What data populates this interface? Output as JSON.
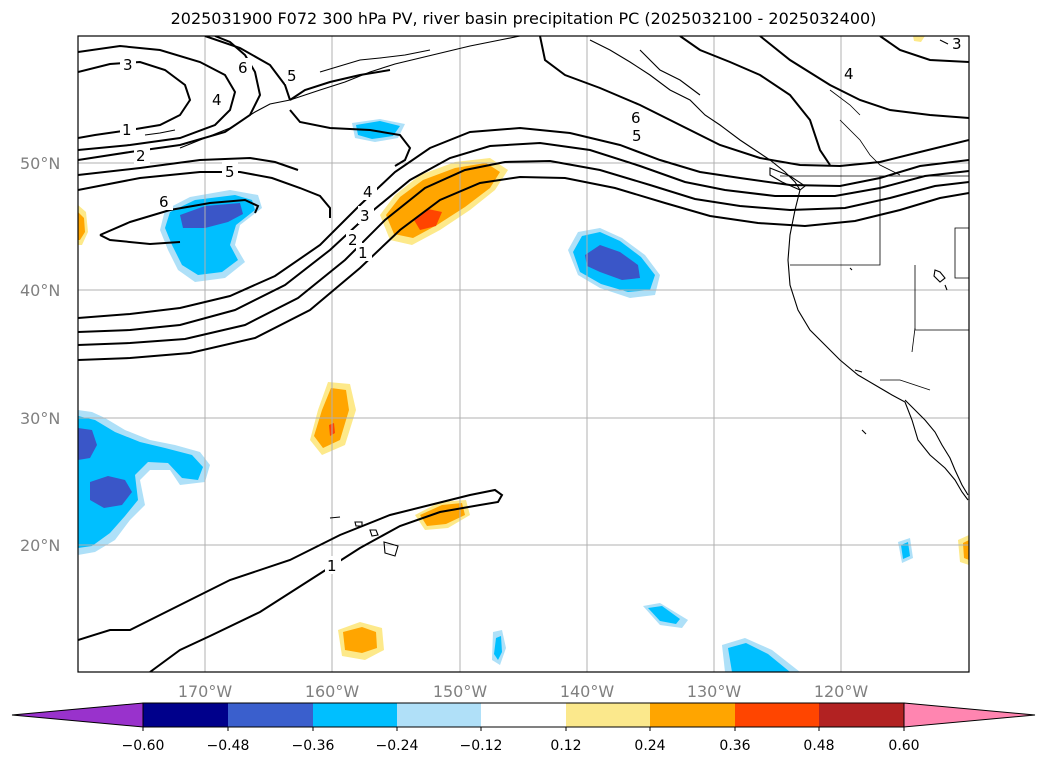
{
  "title": "2025031900 F072 300 hPa PV, river basin precipitation PC (2025032100 - 2025032400)",
  "map": {
    "lat_labels": [
      "50°N",
      "40°N",
      "30°N",
      "20°N"
    ],
    "lon_labels": [
      "170°W",
      "160°W",
      "150°W",
      "140°W",
      "130°W",
      "120°W"
    ],
    "contour_labels": [
      "3",
      "6",
      "5",
      "4",
      "1",
      "2",
      "5",
      "6",
      "4",
      "3",
      "2",
      "1",
      "6",
      "5",
      "4",
      "3",
      "1"
    ],
    "colors": {
      "strong_neg": "#3a56c8",
      "neg": "#00bfff",
      "weak_neg": "#aee0f8",
      "weak_pos": "#fde98a",
      "pos": "#ffa500",
      "strong_pos": "#ff4500"
    }
  },
  "colorbar": {
    "ticks": [
      "−0.60",
      "−0.48",
      "−0.36",
      "−0.24",
      "−0.12",
      "0.12",
      "0.24",
      "0.36",
      "0.48",
      "0.60"
    ],
    "colors": [
      "#9932cc",
      "#00008b",
      "#3a5fcd",
      "#00bfff",
      "#b0e0f8",
      "#ffffff",
      "#fbe88c",
      "#ffa500",
      "#ff4500",
      "#b22222",
      "#ff85b0"
    ]
  }
}
